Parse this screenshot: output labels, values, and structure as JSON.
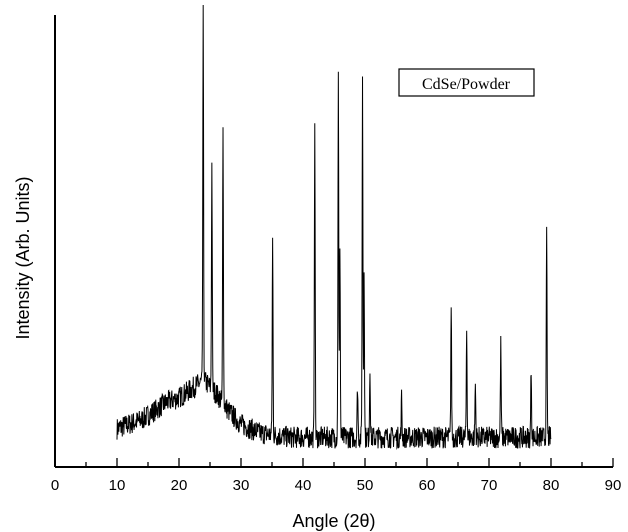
{
  "chart_data": {
    "type": "line",
    "xlabel": "Angle (2θ)",
    "ylabel": "Intensity (Arb. Units)",
    "xlim": [
      0,
      90
    ],
    "xticks": [
      "0",
      "10",
      "20",
      "30",
      "40",
      "50",
      "60",
      "70",
      "80",
      "90"
    ],
    "y_ticks_shown": false,
    "grid": false,
    "legend": {
      "label": "CdSe/Powder",
      "placement": "top-right",
      "boxed": true
    },
    "series": [
      {
        "name": "CdSe/Powder",
        "color": "#000000",
        "x_range": [
          10,
          80
        ],
        "noise_level": 0.05,
        "background": [
          [
            10,
            0.06
          ],
          [
            12,
            0.07
          ],
          [
            14,
            0.08
          ],
          [
            16,
            0.1
          ],
          [
            18,
            0.12
          ],
          [
            20,
            0.13
          ],
          [
            22,
            0.15
          ],
          [
            24,
            0.17
          ],
          [
            26,
            0.14
          ],
          [
            28,
            0.1
          ],
          [
            30,
            0.07
          ],
          [
            33,
            0.05
          ],
          [
            38,
            0.04
          ],
          [
            45,
            0.04
          ],
          [
            55,
            0.04
          ],
          [
            65,
            0.04
          ],
          [
            75,
            0.04
          ],
          [
            80,
            0.04
          ]
        ],
        "peaks": [
          {
            "x": 23.9,
            "y": 1.0
          },
          {
            "x": 25.3,
            "y": 0.66
          },
          {
            "x": 27.1,
            "y": 0.74
          },
          {
            "x": 35.1,
            "y": 0.49
          },
          {
            "x": 41.9,
            "y": 0.77
          },
          {
            "x": 45.7,
            "y": 0.86
          },
          {
            "x": 45.95,
            "y": 0.48
          },
          {
            "x": 48.8,
            "y": 0.16
          },
          {
            "x": 49.6,
            "y": 0.85
          },
          {
            "x": 49.85,
            "y": 0.43
          },
          {
            "x": 50.8,
            "y": 0.2
          },
          {
            "x": 55.9,
            "y": 0.13
          },
          {
            "x": 63.9,
            "y": 0.34
          },
          {
            "x": 66.4,
            "y": 0.29
          },
          {
            "x": 67.8,
            "y": 0.16
          },
          {
            "x": 71.9,
            "y": 0.25
          },
          {
            "x": 76.8,
            "y": 0.2
          },
          {
            "x": 79.3,
            "y": 0.5
          }
        ]
      }
    ]
  }
}
